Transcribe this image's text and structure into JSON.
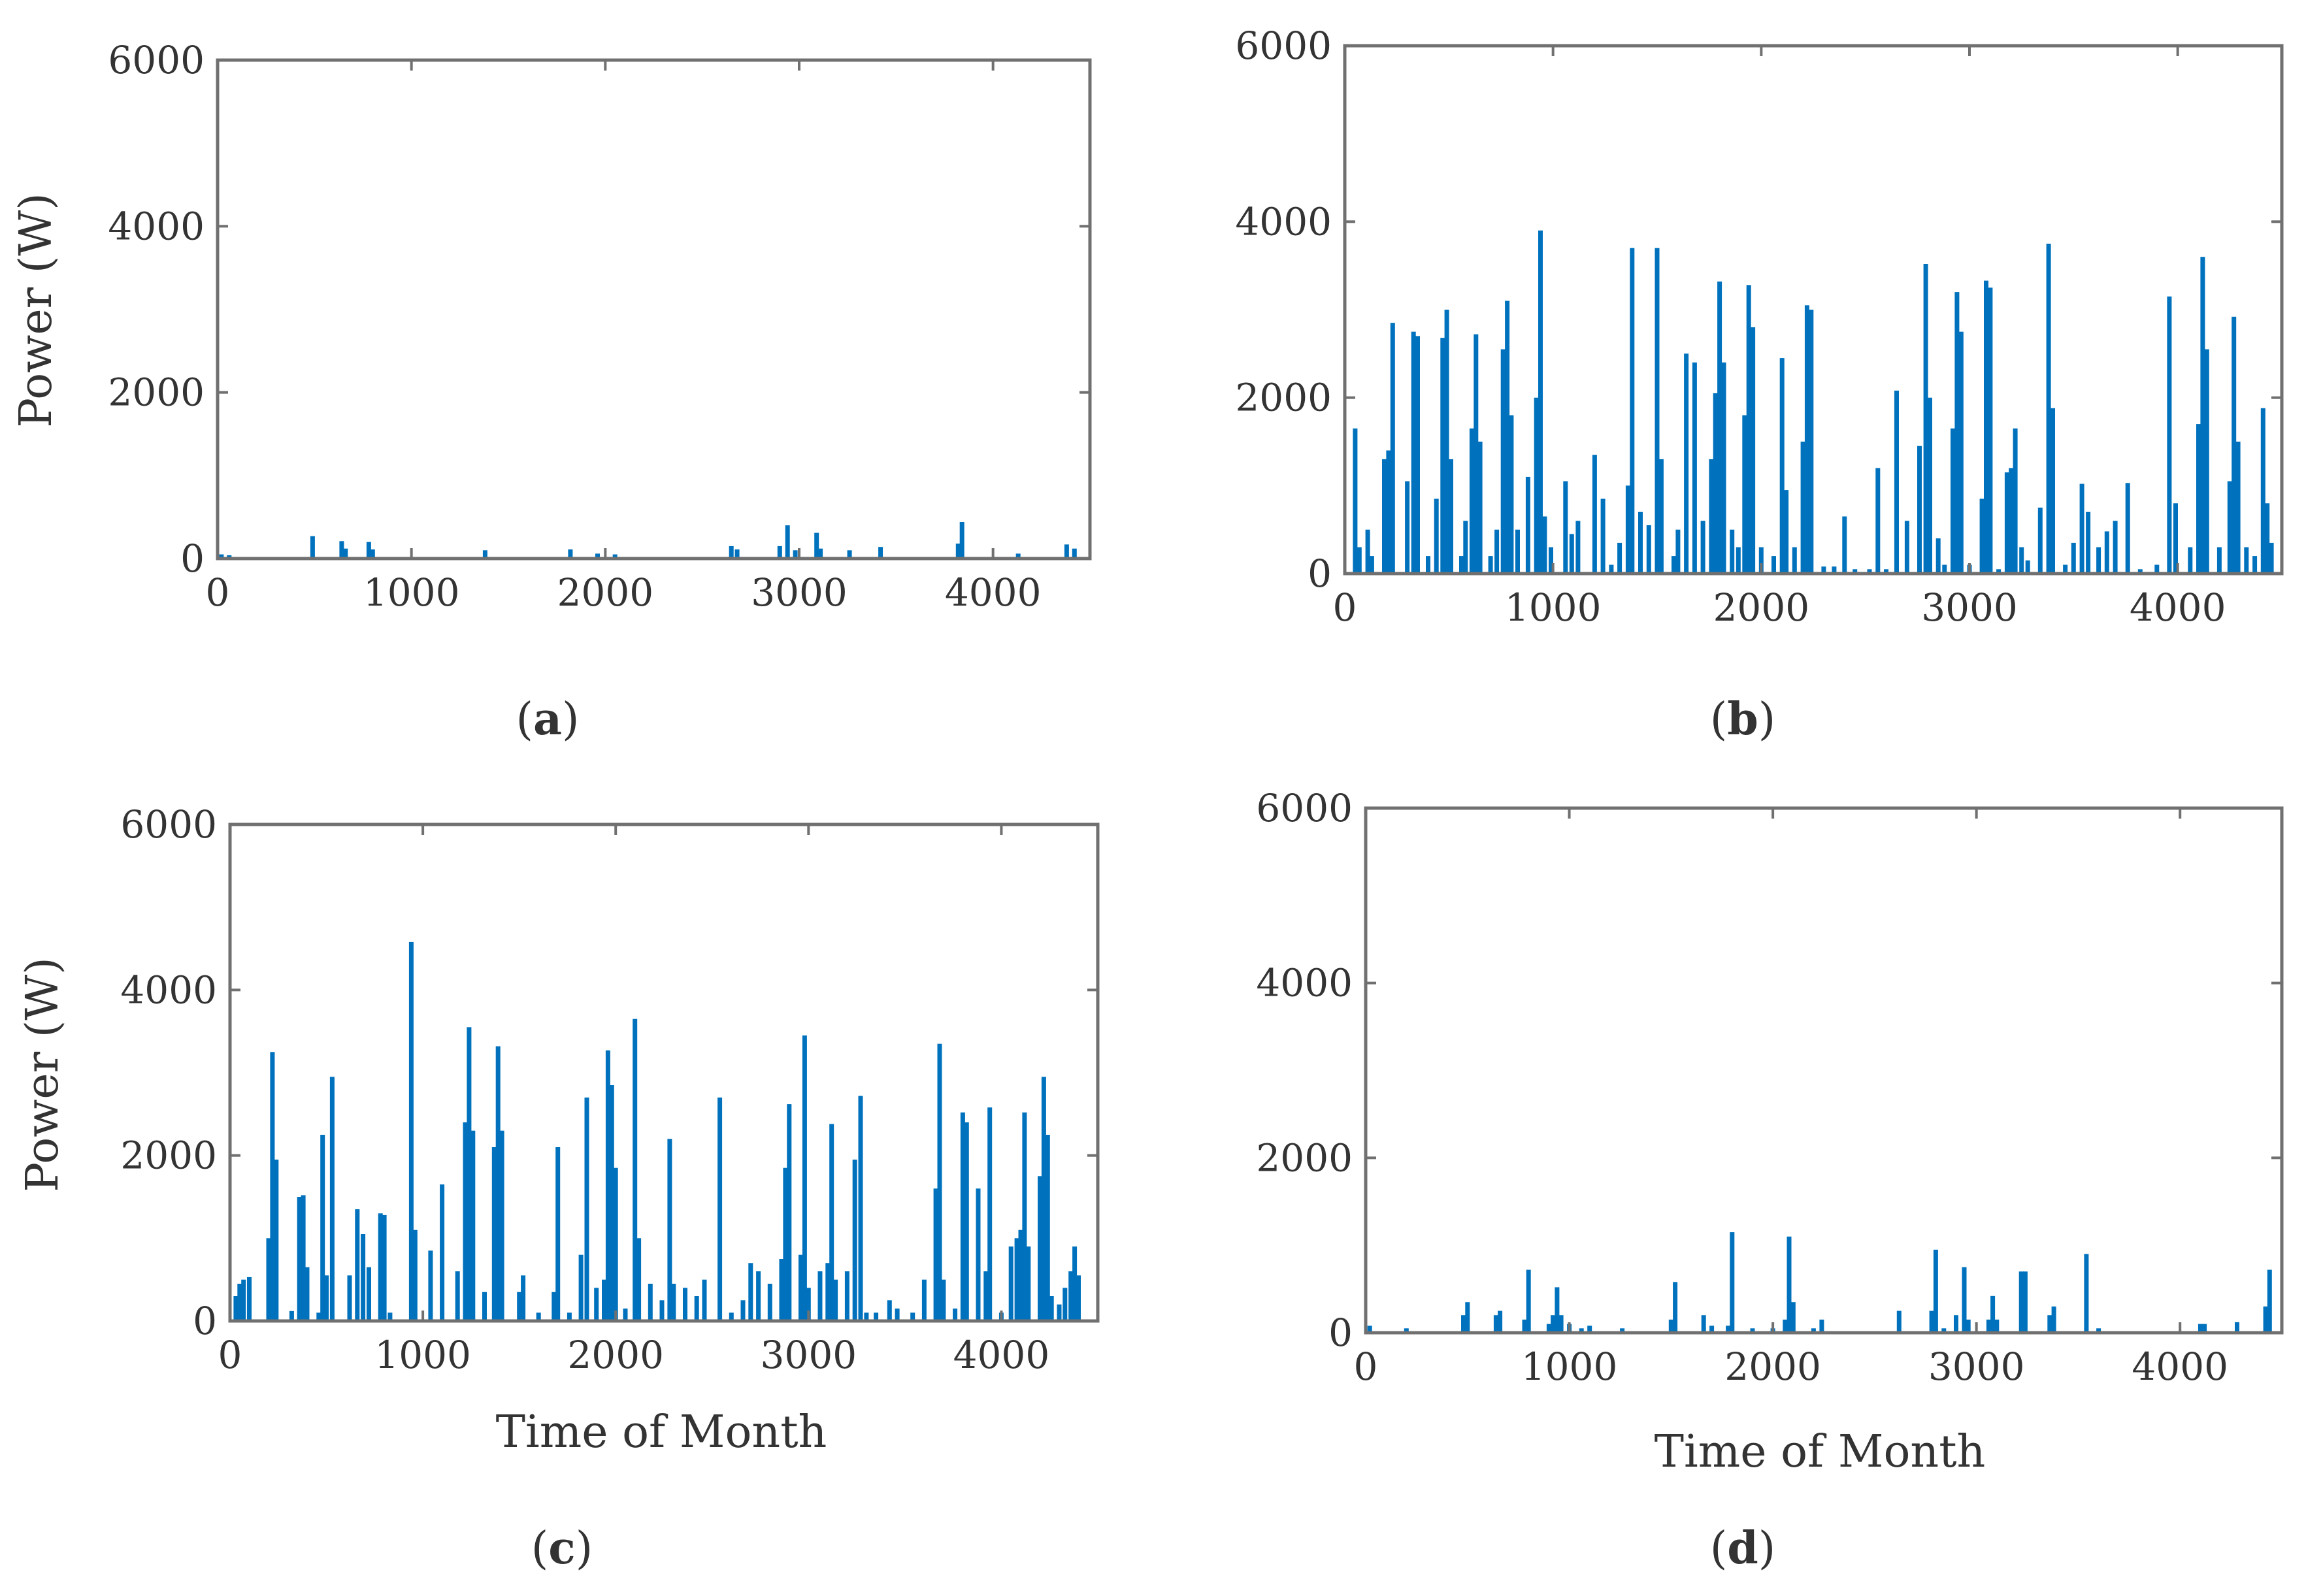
{
  "colors": {
    "bar": "#0072BD",
    "axis": "#707070",
    "text": "#333333"
  },
  "chart_data": [
    {
      "id": "a",
      "type": "bar",
      "caption_letter": "a",
      "xlabel": "",
      "ylabel": "Power (W)",
      "xlim": [
        0,
        4500
      ],
      "ylim": [
        0,
        6000
      ],
      "xticks": [
        0,
        1000,
        2000,
        3000,
        4000
      ],
      "yticks": [
        0,
        2000,
        4000,
        6000
      ],
      "points": [
        [
          20,
          50
        ],
        [
          60,
          40
        ],
        [
          490,
          270
        ],
        [
          640,
          210
        ],
        [
          660,
          120
        ],
        [
          780,
          200
        ],
        [
          800,
          110
        ],
        [
          1380,
          100
        ],
        [
          1820,
          110
        ],
        [
          1960,
          60
        ],
        [
          2050,
          50
        ],
        [
          2650,
          150
        ],
        [
          2680,
          110
        ],
        [
          2900,
          150
        ],
        [
          2940,
          400
        ],
        [
          2980,
          100
        ],
        [
          3090,
          310
        ],
        [
          3110,
          120
        ],
        [
          3260,
          100
        ],
        [
          3420,
          140
        ],
        [
          3820,
          180
        ],
        [
          3840,
          440
        ],
        [
          4130,
          60
        ],
        [
          4380,
          170
        ],
        [
          4420,
          120
        ]
      ]
    },
    {
      "id": "b",
      "type": "bar",
      "caption_letter": "b",
      "xlabel": "",
      "ylabel": "",
      "xlim": [
        0,
        4500
      ],
      "ylim": [
        0,
        6000
      ],
      "xticks": [
        0,
        1000,
        2000,
        3000,
        4000
      ],
      "yticks": [
        0,
        2000,
        4000,
        6000
      ],
      "points": [
        [
          50,
          1650
        ],
        [
          70,
          300
        ],
        [
          110,
          500
        ],
        [
          130,
          200
        ],
        [
          190,
          1300
        ],
        [
          210,
          1400
        ],
        [
          230,
          2850
        ],
        [
          300,
          1050
        ],
        [
          330,
          2750
        ],
        [
          350,
          2700
        ],
        [
          400,
          200
        ],
        [
          440,
          850
        ],
        [
          470,
          2680
        ],
        [
          490,
          3000
        ],
        [
          510,
          1300
        ],
        [
          560,
          200
        ],
        [
          580,
          600
        ],
        [
          610,
          1650
        ],
        [
          630,
          2720
        ],
        [
          650,
          1500
        ],
        [
          700,
          200
        ],
        [
          730,
          500
        ],
        [
          760,
          2550
        ],
        [
          780,
          3100
        ],
        [
          800,
          1800
        ],
        [
          830,
          500
        ],
        [
          880,
          1100
        ],
        [
          920,
          2000
        ],
        [
          940,
          3900
        ],
        [
          960,
          650
        ],
        [
          990,
          300
        ],
        [
          1060,
          1050
        ],
        [
          1090,
          450
        ],
        [
          1120,
          600
        ],
        [
          1200,
          1350
        ],
        [
          1240,
          850
        ],
        [
          1280,
          100
        ],
        [
          1320,
          350
        ],
        [
          1360,
          1000
        ],
        [
          1380,
          3700
        ],
        [
          1420,
          700
        ],
        [
          1460,
          550
        ],
        [
          1500,
          3700
        ],
        [
          1520,
          1300
        ],
        [
          1580,
          200
        ],
        [
          1600,
          500
        ],
        [
          1640,
          2500
        ],
        [
          1680,
          2400
        ],
        [
          1720,
          600
        ],
        [
          1760,
          1300
        ],
        [
          1780,
          2050
        ],
        [
          1800,
          3320
        ],
        [
          1820,
          2400
        ],
        [
          1860,
          500
        ],
        [
          1890,
          300
        ],
        [
          1920,
          1800
        ],
        [
          1940,
          3280
        ],
        [
          1960,
          2800
        ],
        [
          2000,
          300
        ],
        [
          2060,
          200
        ],
        [
          2100,
          2450
        ],
        [
          2120,
          950
        ],
        [
          2160,
          300
        ],
        [
          2200,
          1500
        ],
        [
          2220,
          3050
        ],
        [
          2240,
          3000
        ],
        [
          2300,
          80
        ],
        [
          2350,
          80
        ],
        [
          2400,
          650
        ],
        [
          2450,
          50
        ],
        [
          2520,
          50
        ],
        [
          2560,
          1200
        ],
        [
          2600,
          50
        ],
        [
          2650,
          2080
        ],
        [
          2700,
          600
        ],
        [
          2760,
          1450
        ],
        [
          2790,
          3520
        ],
        [
          2810,
          2000
        ],
        [
          2850,
          400
        ],
        [
          2880,
          100
        ],
        [
          2920,
          1650
        ],
        [
          2940,
          3200
        ],
        [
          2960,
          2750
        ],
        [
          3000,
          100
        ],
        [
          3060,
          850
        ],
        [
          3080,
          3330
        ],
        [
          3100,
          3250
        ],
        [
          3140,
          50
        ],
        [
          3180,
          1150
        ],
        [
          3200,
          1200
        ],
        [
          3220,
          1650
        ],
        [
          3250,
          300
        ],
        [
          3280,
          150
        ],
        [
          3340,
          750
        ],
        [
          3380,
          3750
        ],
        [
          3400,
          1880
        ],
        [
          3460,
          100
        ],
        [
          3500,
          350
        ],
        [
          3540,
          1020
        ],
        [
          3570,
          700
        ],
        [
          3620,
          300
        ],
        [
          3660,
          480
        ],
        [
          3700,
          600
        ],
        [
          3760,
          1030
        ],
        [
          3820,
          50
        ],
        [
          3900,
          100
        ],
        [
          3960,
          3150
        ],
        [
          3990,
          800
        ],
        [
          4060,
          300
        ],
        [
          4100,
          1700
        ],
        [
          4120,
          3600
        ],
        [
          4140,
          2550
        ],
        [
          4200,
          300
        ],
        [
          4250,
          1050
        ],
        [
          4270,
          2920
        ],
        [
          4290,
          1500
        ],
        [
          4330,
          300
        ],
        [
          4370,
          200
        ],
        [
          4410,
          1880
        ],
        [
          4430,
          800
        ],
        [
          4450,
          350
        ]
      ]
    },
    {
      "id": "c",
      "type": "bar",
      "caption_letter": "c",
      "xlabel": "Time of Month",
      "ylabel": "Power (W)",
      "xlim": [
        0,
        4500
      ],
      "ylim": [
        0,
        6000
      ],
      "xticks": [
        0,
        1000,
        2000,
        3000,
        4000
      ],
      "yticks": [
        0,
        2000,
        4000,
        6000
      ],
      "points": [
        [
          30,
          300
        ],
        [
          50,
          450
        ],
        [
          70,
          500
        ],
        [
          100,
          530
        ],
        [
          200,
          1000
        ],
        [
          220,
          3250
        ],
        [
          240,
          1950
        ],
        [
          320,
          120
        ],
        [
          360,
          1500
        ],
        [
          380,
          1520
        ],
        [
          400,
          650
        ],
        [
          460,
          100
        ],
        [
          480,
          2250
        ],
        [
          500,
          550
        ],
        [
          530,
          2950
        ],
        [
          620,
          550
        ],
        [
          660,
          1350
        ],
        [
          690,
          1050
        ],
        [
          720,
          650
        ],
        [
          780,
          1300
        ],
        [
          800,
          1280
        ],
        [
          830,
          100
        ],
        [
          940,
          4580
        ],
        [
          960,
          1100
        ],
        [
          1040,
          850
        ],
        [
          1100,
          1650
        ],
        [
          1180,
          600
        ],
        [
          1220,
          2400
        ],
        [
          1240,
          3550
        ],
        [
          1260,
          2300
        ],
        [
          1320,
          350
        ],
        [
          1370,
          2100
        ],
        [
          1390,
          3320
        ],
        [
          1410,
          2300
        ],
        [
          1500,
          350
        ],
        [
          1520,
          550
        ],
        [
          1600,
          100
        ],
        [
          1680,
          350
        ],
        [
          1700,
          2100
        ],
        [
          1760,
          100
        ],
        [
          1820,
          800
        ],
        [
          1850,
          2700
        ],
        [
          1900,
          400
        ],
        [
          1940,
          500
        ],
        [
          1960,
          3270
        ],
        [
          1980,
          2850
        ],
        [
          2000,
          1850
        ],
        [
          2050,
          150
        ],
        [
          2100,
          3650
        ],
        [
          2120,
          1000
        ],
        [
          2180,
          450
        ],
        [
          2240,
          250
        ],
        [
          2280,
          2200
        ],
        [
          2300,
          450
        ],
        [
          2360,
          400
        ],
        [
          2420,
          300
        ],
        [
          2460,
          500
        ],
        [
          2540,
          2700
        ],
        [
          2600,
          100
        ],
        [
          2660,
          250
        ],
        [
          2700,
          700
        ],
        [
          2740,
          600
        ],
        [
          2800,
          450
        ],
        [
          2860,
          750
        ],
        [
          2880,
          1850
        ],
        [
          2900,
          2620
        ],
        [
          2960,
          800
        ],
        [
          2980,
          3450
        ],
        [
          3000,
          400
        ],
        [
          3060,
          600
        ],
        [
          3100,
          700
        ],
        [
          3120,
          2380
        ],
        [
          3140,
          500
        ],
        [
          3200,
          600
        ],
        [
          3240,
          1950
        ],
        [
          3270,
          2720
        ],
        [
          3300,
          100
        ],
        [
          3350,
          100
        ],
        [
          3420,
          250
        ],
        [
          3460,
          150
        ],
        [
          3540,
          100
        ],
        [
          3600,
          500
        ],
        [
          3660,
          1600
        ],
        [
          3680,
          3350
        ],
        [
          3700,
          500
        ],
        [
          3760,
          150
        ],
        [
          3800,
          2520
        ],
        [
          3820,
          2400
        ],
        [
          3880,
          1600
        ],
        [
          3920,
          600
        ],
        [
          3940,
          2580
        ],
        [
          4000,
          100
        ],
        [
          4050,
          900
        ],
        [
          4080,
          1000
        ],
        [
          4100,
          1100
        ],
        [
          4120,
          2520
        ],
        [
          4140,
          900
        ],
        [
          4200,
          1750
        ],
        [
          4220,
          2950
        ],
        [
          4240,
          2250
        ],
        [
          4260,
          300
        ],
        [
          4300,
          200
        ],
        [
          4330,
          400
        ],
        [
          4360,
          600
        ],
        [
          4380,
          900
        ],
        [
          4400,
          550
        ]
      ]
    },
    {
      "id": "d",
      "type": "bar",
      "caption_letter": "d",
      "xlabel": "Time of Month",
      "ylabel": "",
      "xlim": [
        0,
        4500
      ],
      "ylim": [
        0,
        6000
      ],
      "xticks": [
        0,
        1000,
        2000,
        3000,
        4000
      ],
      "yticks": [
        0,
        2000,
        4000,
        6000
      ],
      "points": [
        [
          20,
          80
        ],
        [
          200,
          50
        ],
        [
          480,
          200
        ],
        [
          500,
          350
        ],
        [
          640,
          200
        ],
        [
          660,
          250
        ],
        [
          780,
          150
        ],
        [
          800,
          720
        ],
        [
          900,
          100
        ],
        [
          920,
          200
        ],
        [
          940,
          520
        ],
        [
          960,
          200
        ],
        [
          1000,
          100
        ],
        [
          1060,
          50
        ],
        [
          1100,
          80
        ],
        [
          1260,
          50
        ],
        [
          1500,
          150
        ],
        [
          1520,
          580
        ],
        [
          1660,
          200
        ],
        [
          1700,
          80
        ],
        [
          1780,
          80
        ],
        [
          1800,
          1150
        ],
        [
          1900,
          50
        ],
        [
          2000,
          50
        ],
        [
          2060,
          150
        ],
        [
          2080,
          1100
        ],
        [
          2100,
          350
        ],
        [
          2200,
          50
        ],
        [
          2240,
          150
        ],
        [
          2620,
          250
        ],
        [
          2780,
          250
        ],
        [
          2800,
          950
        ],
        [
          2840,
          50
        ],
        [
          2900,
          200
        ],
        [
          2940,
          750
        ],
        [
          2960,
          150
        ],
        [
          3060,
          150
        ],
        [
          3080,
          420
        ],
        [
          3100,
          150
        ],
        [
          3220,
          700
        ],
        [
          3240,
          700
        ],
        [
          3360,
          200
        ],
        [
          3380,
          300
        ],
        [
          3540,
          900
        ],
        [
          3600,
          50
        ],
        [
          4100,
          100
        ],
        [
          4120,
          100
        ],
        [
          4280,
          120
        ],
        [
          4420,
          300
        ],
        [
          4440,
          720
        ]
      ]
    }
  ]
}
